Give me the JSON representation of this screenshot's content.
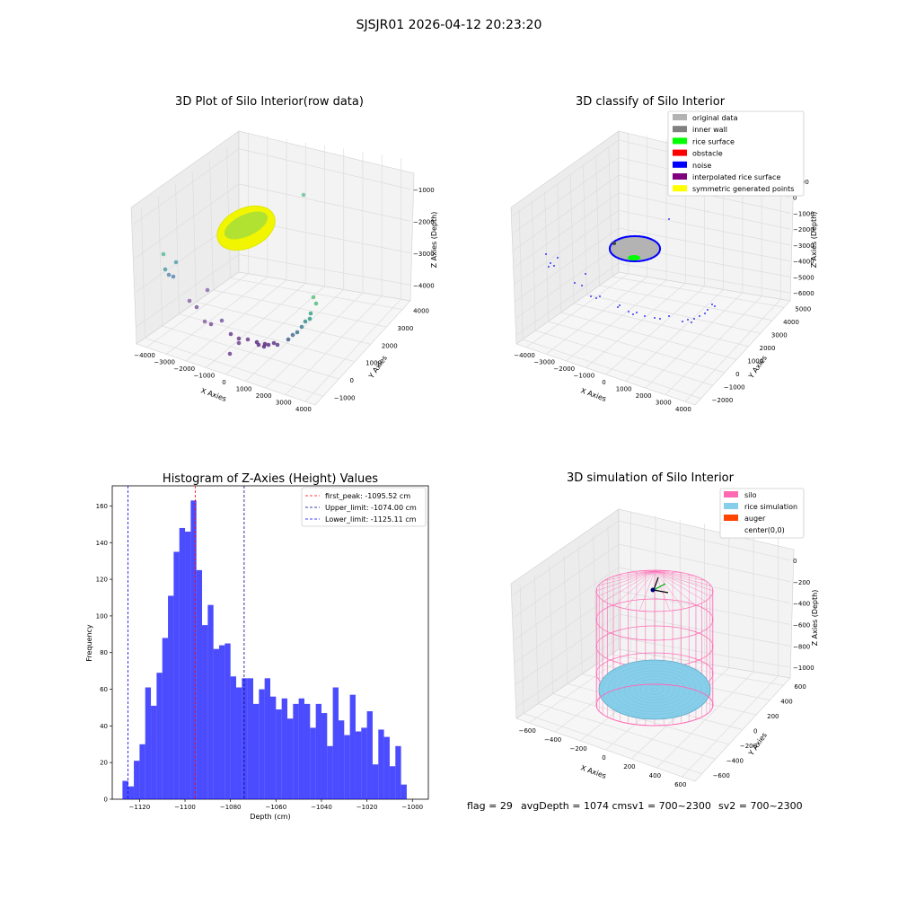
{
  "suptitle": "SJSJR01 2026-04-12 20:23:20",
  "footer": {
    "flag": "flag = 29",
    "avg": "avgDepth = 1074 cmsv1 = 700~2300",
    "sv2": "sv2 = 700~2300"
  },
  "colors": {
    "hist": "#0000ff",
    "first_peak": "#ff0000",
    "upper": "#00008b",
    "lower": "#0000ff",
    "silo": "#ff69b4",
    "rice": "#87ceeb",
    "auger": "#ff4500",
    "rice_surface": "#00ff00",
    "noise": "#0000ff",
    "inner_wall": "#808080",
    "original": "#b3b3b3",
    "obstacle": "#ff0000",
    "interpolated": "#800080",
    "symmetric": "#ffff00"
  },
  "chart_data": [
    {
      "type": "scatter",
      "title": "3D Plot of Silo Interior(row data)",
      "xlabel": "X Axies",
      "ylabel": "Y Axies",
      "zlabel": "Z Axies (Depth)",
      "x_ticks": [
        "−4000",
        "−3000",
        "−2000",
        "−1000",
        "0",
        "1000",
        "2000",
        "3000",
        "4000"
      ],
      "y_ticks": [
        "−1000",
        "0",
        "1000",
        "2000",
        "3000",
        "4000"
      ],
      "z_ticks": [
        "−1000",
        "−2000",
        "−3000",
        "−4000"
      ],
      "grid": true
    },
    {
      "type": "scatter",
      "title": "3D classify of Silo Interior",
      "xlabel": "X Axies",
      "ylabel": "Y Axies",
      "zlabel": "Z Axies (Depth)",
      "x_ticks": [
        "−4000",
        "−3000",
        "−2000",
        "−1000",
        "0",
        "1000",
        "2000",
        "3000",
        "4000"
      ],
      "y_ticks": [
        "−2000",
        "−1000",
        "0",
        "1000",
        "2000",
        "3000",
        "4000",
        "5000"
      ],
      "z_ticks": [
        "1000",
        "0",
        "−1000",
        "−2000",
        "−3000",
        "−4000",
        "−5000",
        "−6000"
      ],
      "legend": [
        "original data",
        "inner wall",
        "rice surface",
        "obstacle",
        "noise",
        "interpolated rice surface",
        "symmetric generated points"
      ],
      "legend_position": "top-right",
      "grid": true
    },
    {
      "type": "bar",
      "title": "Histogram of Z-Axies (Height) Values",
      "xlabel": "Depth (cm)",
      "ylabel": "Frequency",
      "xlim": [
        -1132,
        -993
      ],
      "ylim": [
        0,
        171
      ],
      "x_ticks": [
        -1120,
        -1100,
        -1080,
        -1060,
        -1040,
        -1020,
        -1000
      ],
      "y_ticks": [
        0,
        20,
        40,
        60,
        80,
        100,
        120,
        140,
        160
      ],
      "bin_start": -1127.5,
      "bin_width": 2.5,
      "values": [
        10,
        7,
        21,
        30,
        61,
        51,
        69,
        88,
        111,
        135,
        148,
        146,
        163,
        125,
        95,
        106,
        82,
        84,
        85,
        67,
        61,
        66,
        66,
        52,
        60,
        66,
        56,
        49,
        55,
        44,
        52,
        55,
        52,
        39,
        52,
        47,
        29,
        61,
        43,
        35,
        57,
        37,
        39,
        48,
        19,
        38,
        34,
        18,
        29,
        8
      ],
      "vlines": [
        {
          "label": "first_peak: -1095.52 cm",
          "x": -1095.52,
          "color": "#ff0000"
        },
        {
          "label": "Upper_limit: -1074.00 cm",
          "x": -1074.0,
          "color": "#00008b"
        },
        {
          "label": "Lower_limit: -1125.11 cm",
          "x": -1125.11,
          "color": "#0000ff"
        }
      ],
      "legend_position": "top-right",
      "grid": false
    },
    {
      "type": "scatter",
      "title": "3D simulation of Silo Interior",
      "xlabel": "X Axies",
      "ylabel": "Y Axies",
      "zlabel": "Z Axies (Depth)",
      "x_ticks": [
        "−600",
        "−400",
        "−200",
        "0",
        "200",
        "400",
        "600"
      ],
      "y_ticks": [
        "−600",
        "−400",
        "−200",
        "0",
        "200",
        "400",
        "600"
      ],
      "z_ticks": [
        "0",
        "−200",
        "−400",
        "−600",
        "−800",
        "−1000"
      ],
      "legend": [
        "silo",
        "rice simulation",
        "auger",
        "center(0,0)"
      ],
      "legend_position": "top-right",
      "grid": true
    }
  ]
}
